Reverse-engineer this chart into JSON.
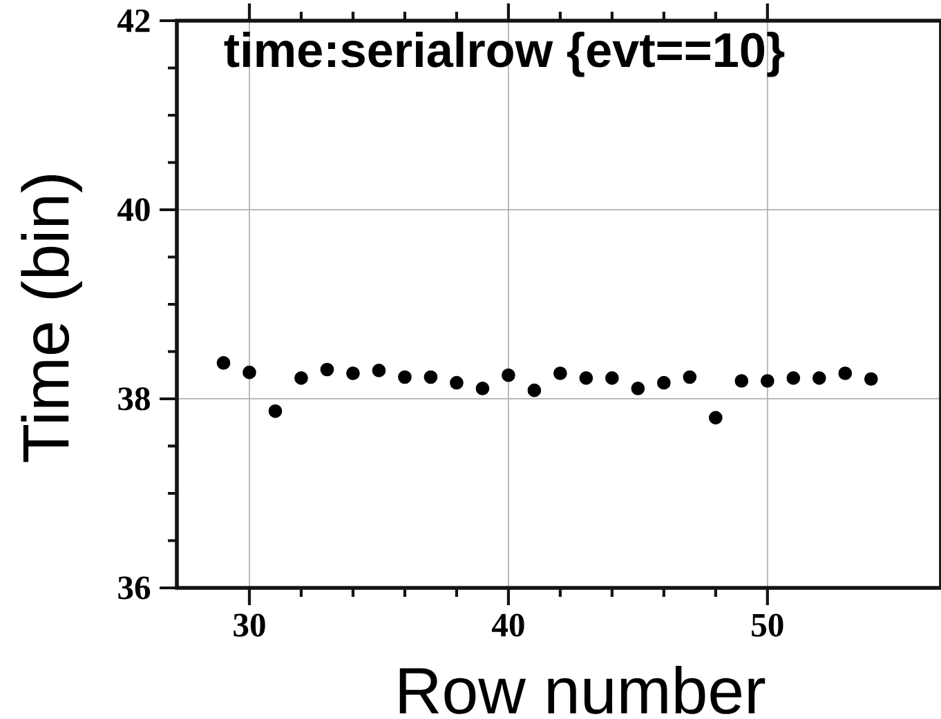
{
  "chart_data": {
    "type": "scatter",
    "title": "time:serialrow {evt==10}",
    "xlabel": "Row number",
    "ylabel": "Time (bin)",
    "x": [
      29,
      30,
      31,
      32,
      33,
      34,
      35,
      36,
      37,
      38,
      39,
      40,
      41,
      42,
      43,
      44,
      45,
      46,
      47,
      48,
      49,
      50,
      51,
      52,
      53,
      54
    ],
    "values": [
      38.38,
      38.28,
      37.87,
      38.22,
      38.31,
      38.27,
      38.3,
      38.23,
      38.23,
      38.17,
      38.11,
      38.25,
      38.09,
      38.27,
      38.22,
      38.22,
      38.11,
      38.17,
      38.23,
      37.8,
      38.19,
      38.19,
      38.22,
      38.22,
      38.27,
      38.21
    ],
    "color": "#000000",
    "marker": "circle",
    "xlim": [
      27.2,
      56.7
    ],
    "xticks": [
      30,
      40,
      50
    ],
    "ylim": [
      36,
      42
    ],
    "yticks": [
      36,
      38,
      40,
      42
    ],
    "grid": true
  }
}
